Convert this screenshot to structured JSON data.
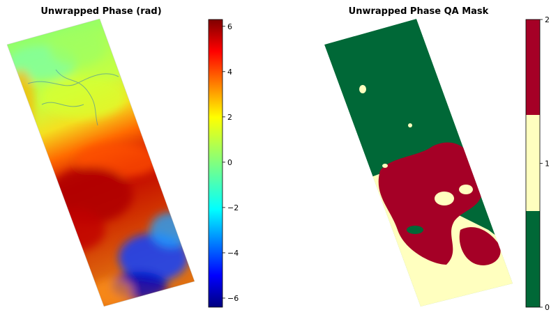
{
  "chart_data": [
    {
      "type": "heatmap",
      "title": "Unwrapped Phase (rad)",
      "colormap": "jet",
      "colorbar": {
        "range": [
          -6.4,
          6.3
        ],
        "ticks": [
          -6,
          -4,
          -2,
          0,
          2,
          4,
          6
        ],
        "tick_labels": [
          "−6",
          "−4",
          "−2",
          "0",
          "2",
          "4",
          "6"
        ]
      },
      "regions": [
        {
          "description": "northern part of swath",
          "approx_value": 0.5
        },
        {
          "description": "middle band",
          "approx_value": 2.0
        },
        {
          "description": "central-west lobe",
          "approx_value": 6.0
        },
        {
          "description": "south-east corner",
          "approx_value": -4.5
        }
      ],
      "axes_visible": false
    },
    {
      "type": "heatmap",
      "title": "Unwrapped Phase QA Mask",
      "colorbar": {
        "range": [
          0,
          2
        ],
        "ticks": [
          0,
          1,
          2
        ],
        "tick_labels": [
          "0",
          "1",
          "2"
        ],
        "classes": [
          {
            "value": 0,
            "color": "#006837"
          },
          {
            "value": 1,
            "color": "#FFFFBF"
          },
          {
            "value": 2,
            "color": "#A50026"
          }
        ]
      },
      "axes_visible": false
    }
  ]
}
